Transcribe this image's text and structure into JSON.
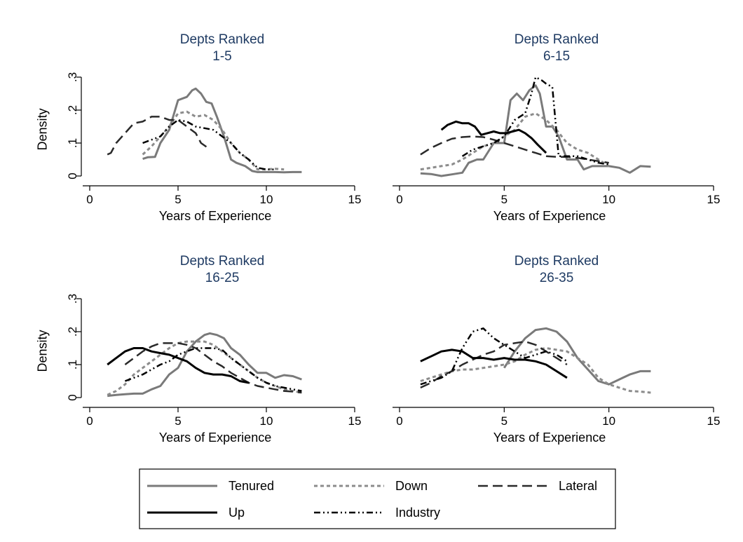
{
  "chart_data": [
    {
      "type": "line",
      "title": "Depts Ranked",
      "subtitle": "1-5",
      "xlabel": "Years of Experience",
      "ylabel": "Density",
      "xlim": [
        0,
        15
      ],
      "ylim": [
        0,
        0.3
      ],
      "xticks": [
        "0",
        "5",
        "10",
        "15"
      ],
      "yticks": [
        "0",
        ".1",
        ".2",
        ".3"
      ],
      "grid": false,
      "series": [
        {
          "name": "Tenured",
          "x": [
            3,
            3.3,
            3.7,
            4,
            4.5,
            5,
            5.5,
            5.8,
            6,
            6.3,
            6.6,
            6.9,
            7.2,
            7.6,
            8,
            8.3,
            8.8,
            9.2,
            9.5,
            10,
            10.5,
            11,
            11.5,
            12
          ],
          "y": [
            0.052,
            0.057,
            0.058,
            0.1,
            0.14,
            0.23,
            0.24,
            0.26,
            0.265,
            0.25,
            0.225,
            0.22,
            0.18,
            0.12,
            0.05,
            0.04,
            0.03,
            0.015,
            0.012,
            0.012,
            0.012,
            0.011,
            0.012,
            0.012
          ]
        },
        {
          "name": "Down",
          "x": [
            3,
            3.5,
            4,
            4.5,
            5,
            5.5,
            6,
            6.5,
            7,
            7.5,
            8,
            8.5,
            9,
            9.5,
            10,
            10.5,
            11
          ],
          "y": [
            0.065,
            0.09,
            0.12,
            0.15,
            0.19,
            0.195,
            0.18,
            0.185,
            0.17,
            0.14,
            0.1,
            0.07,
            0.05,
            0.02,
            0.02,
            0.022,
            0.02
          ]
        },
        {
          "name": "Lateral",
          "x": [
            1,
            1.2,
            1.5,
            2,
            2.5,
            3,
            3.5,
            4,
            4.5,
            5,
            5.5,
            6,
            6.3,
            6.7
          ],
          "y": [
            0.065,
            0.07,
            0.1,
            0.13,
            0.16,
            0.165,
            0.18,
            0.18,
            0.17,
            0.17,
            0.15,
            0.13,
            0.1,
            0.085
          ]
        },
        {
          "name": "Up",
          "x": [],
          "y": []
        },
        {
          "name": "Industry",
          "x": [
            3,
            3.5,
            4,
            4.5,
            5,
            5.5,
            6,
            6.5,
            7,
            7.5,
            8,
            8.5,
            9,
            9.5,
            10,
            10.5
          ],
          "y": [
            0.1,
            0.11,
            0.12,
            0.15,
            0.17,
            0.165,
            0.15,
            0.145,
            0.14,
            0.12,
            0.1,
            0.07,
            0.05,
            0.025,
            0.02,
            0.02
          ]
        }
      ]
    },
    {
      "type": "line",
      "title": "Depts Ranked",
      "subtitle": "6-15",
      "xlabel": "Years of Experience",
      "ylabel": "",
      "xlim": [
        0,
        15
      ],
      "ylim": [
        0,
        0.3
      ],
      "xticks": [
        "0",
        "5",
        "10",
        "15"
      ],
      "yticks": [],
      "grid": false,
      "series": [
        {
          "name": "Tenured",
          "x": [
            1,
            1.5,
            2,
            2.5,
            3,
            3.3,
            3.7,
            4,
            4.5,
            5,
            5.3,
            5.6,
            5.9,
            6.2,
            6.5,
            6.7,
            7,
            7.3,
            7.6,
            8,
            8.5,
            8.8,
            9.2,
            9.5,
            10,
            10.5,
            11,
            11.5,
            12
          ],
          "y": [
            0.008,
            0.006,
            0,
            0.005,
            0.01,
            0.04,
            0.05,
            0.05,
            0.1,
            0.1,
            0.23,
            0.25,
            0.23,
            0.26,
            0.275,
            0.25,
            0.15,
            0.15,
            0.12,
            0.05,
            0.05,
            0.02,
            0.03,
            0.03,
            0.03,
            0.025,
            0.01,
            0.03,
            0.028
          ]
        },
        {
          "name": "Down",
          "x": [
            1,
            1.5,
            2,
            2.5,
            3,
            3.5,
            4,
            4.5,
            5,
            5.5,
            6,
            6.5,
            7,
            7.5,
            8,
            8.5,
            9,
            9.5,
            10
          ],
          "y": [
            0.02,
            0.025,
            0.03,
            0.035,
            0.05,
            0.07,
            0.09,
            0.1,
            0.12,
            0.14,
            0.18,
            0.19,
            0.17,
            0.14,
            0.1,
            0.08,
            0.07,
            0.05,
            0.03
          ]
        },
        {
          "name": "Lateral",
          "x": [
            1,
            1.5,
            2,
            2.5,
            3,
            3.5,
            4,
            4.5,
            5,
            5.5,
            6,
            6.5,
            7,
            7.5,
            8,
            8.5,
            9,
            9.5,
            10
          ],
          "y": [
            0.065,
            0.085,
            0.1,
            0.113,
            0.118,
            0.12,
            0.118,
            0.11,
            0.1,
            0.09,
            0.08,
            0.07,
            0.06,
            0.058,
            0.058,
            0.055,
            0.05,
            0.045,
            0.04
          ]
        },
        {
          "name": "Up",
          "x": [
            2,
            2.3,
            2.7,
            3,
            3.3,
            3.6,
            3.9,
            4.2,
            4.5,
            4.8,
            5.1,
            5.4,
            5.7,
            6,
            6.3,
            6.6,
            7
          ],
          "y": [
            0.14,
            0.155,
            0.165,
            0.16,
            0.16,
            0.15,
            0.125,
            0.13,
            0.135,
            0.13,
            0.13,
            0.135,
            0.14,
            0.13,
            0.115,
            0.095,
            0.07
          ]
        },
        {
          "name": "Industry",
          "x": [
            3,
            3.5,
            4,
            4.5,
            5,
            5.5,
            6,
            6.3,
            6.5,
            6.8,
            7,
            7.3,
            7.6,
            8,
            8.5,
            9,
            9.5,
            10
          ],
          "y": [
            0.06,
            0.08,
            0.09,
            0.1,
            0.12,
            0.17,
            0.19,
            0.25,
            0.3,
            0.29,
            0.28,
            0.27,
            0.06,
            0.06,
            0.06,
            0.05,
            0.04,
            0.035
          ]
        }
      ]
    },
    {
      "type": "line",
      "title": "Depts Ranked",
      "subtitle": "16-25",
      "xlabel": "Years of Experience",
      "ylabel": "Density",
      "xlim": [
        0,
        15
      ],
      "ylim": [
        0,
        0.3
      ],
      "xticks": [
        "0",
        "5",
        "10",
        "15"
      ],
      "yticks": [
        "0",
        ".1",
        ".2",
        ".3"
      ],
      "grid": false,
      "series": [
        {
          "name": "Tenured",
          "x": [
            1,
            1.5,
            2,
            2.5,
            3,
            3.5,
            4,
            4.5,
            5,
            5.5,
            6,
            6.5,
            6.8,
            7.2,
            7.6,
            8,
            8.5,
            9,
            9.5,
            10,
            10.5,
            11,
            11.5,
            12
          ],
          "y": [
            0.005,
            0.008,
            0.01,
            0.012,
            0.012,
            0.025,
            0.035,
            0.07,
            0.09,
            0.14,
            0.17,
            0.19,
            0.195,
            0.19,
            0.18,
            0.15,
            0.13,
            0.1,
            0.075,
            0.075,
            0.06,
            0.068,
            0.065,
            0.055
          ]
        },
        {
          "name": "Down",
          "x": [
            1,
            1.5,
            2,
            2.5,
            3,
            3.5,
            4,
            4.5,
            5,
            5.5,
            6,
            6.5,
            7,
            7.5,
            8,
            8.5,
            9,
            9.5,
            10,
            10.5,
            11,
            11.5,
            12
          ],
          "y": [
            0.008,
            0.02,
            0.04,
            0.07,
            0.09,
            0.11,
            0.13,
            0.15,
            0.165,
            0.17,
            0.17,
            0.17,
            0.16,
            0.14,
            0.12,
            0.1,
            0.08,
            0.06,
            0.045,
            0.035,
            0.025,
            0.02,
            0.015
          ]
        },
        {
          "name": "Lateral",
          "x": [
            2,
            2.5,
            3,
            3.5,
            4,
            4.5,
            5,
            5.5,
            6,
            6.5,
            7,
            7.5,
            8,
            8.5,
            9,
            9.5,
            10,
            10.5,
            11,
            11.5,
            12
          ],
          "y": [
            0.1,
            0.12,
            0.14,
            0.155,
            0.165,
            0.165,
            0.165,
            0.16,
            0.15,
            0.13,
            0.11,
            0.095,
            0.075,
            0.06,
            0.045,
            0.035,
            0.03,
            0.025,
            0.02,
            0.018,
            0.015
          ]
        },
        {
          "name": "Up",
          "x": [
            1,
            1.5,
            2,
            2.5,
            3,
            3.5,
            4,
            4.5,
            5,
            5.5,
            6,
            6.5,
            7,
            7.5,
            8,
            8.5,
            9
          ],
          "y": [
            0.1,
            0.12,
            0.14,
            0.15,
            0.15,
            0.14,
            0.135,
            0.13,
            0.12,
            0.11,
            0.09,
            0.075,
            0.07,
            0.07,
            0.065,
            0.05,
            0.045
          ]
        },
        {
          "name": "Industry",
          "x": [
            2,
            2.5,
            3,
            3.5,
            4,
            4.5,
            5,
            5.5,
            6,
            6.5,
            7,
            7.5,
            8,
            8.5,
            9,
            9.5,
            10,
            10.5,
            11,
            11.5,
            12
          ],
          "y": [
            0.05,
            0.06,
            0.07,
            0.085,
            0.1,
            0.11,
            0.13,
            0.14,
            0.15,
            0.15,
            0.15,
            0.145,
            0.12,
            0.1,
            0.08,
            0.06,
            0.045,
            0.035,
            0.03,
            0.025,
            0.02
          ]
        }
      ]
    },
    {
      "type": "line",
      "title": "Depts Ranked",
      "subtitle": "26-35",
      "xlabel": "Years of Experience",
      "ylabel": "",
      "xlim": [
        0,
        15
      ],
      "ylim": [
        0,
        0.3
      ],
      "xticks": [
        "0",
        "5",
        "10",
        "15"
      ],
      "yticks": [],
      "grid": false,
      "series": [
        {
          "name": "Tenured",
          "x": [
            5,
            5.5,
            6,
            6.5,
            7,
            7.5,
            8,
            8.5,
            9,
            9.5,
            10,
            10.5,
            11,
            11.5,
            12
          ],
          "y": [
            0.09,
            0.14,
            0.18,
            0.205,
            0.21,
            0.2,
            0.17,
            0.12,
            0.085,
            0.05,
            0.04,
            0.055,
            0.07,
            0.08,
            0.08
          ]
        },
        {
          "name": "Down",
          "x": [
            1,
            1.5,
            2,
            2.5,
            3,
            3.5,
            4,
            4.5,
            5,
            5.5,
            6,
            6.5,
            7,
            7.5,
            8,
            8.5,
            9,
            9.5,
            10,
            10.5,
            11,
            11.5,
            12
          ],
          "y": [
            0.05,
            0.06,
            0.07,
            0.08,
            0.085,
            0.085,
            0.09,
            0.095,
            0.1,
            0.11,
            0.13,
            0.145,
            0.15,
            0.145,
            0.14,
            0.12,
            0.1,
            0.06,
            0.04,
            0.03,
            0.02,
            0.018,
            0.015
          ]
        },
        {
          "name": "Lateral",
          "x": [
            1,
            1.5,
            2,
            2.5,
            3,
            3.5,
            4,
            4.5,
            5,
            5.5,
            6,
            6.5,
            7,
            7.5,
            8
          ],
          "y": [
            0.03,
            0.045,
            0.065,
            0.08,
            0.1,
            0.115,
            0.13,
            0.14,
            0.16,
            0.165,
            0.17,
            0.16,
            0.14,
            0.12,
            0.1
          ]
        },
        {
          "name": "Up",
          "x": [
            1,
            1.5,
            2,
            2.5,
            3,
            3.5,
            4,
            4.5,
            5,
            5.5,
            6,
            6.5,
            7,
            7.5,
            8
          ],
          "y": [
            0.11,
            0.125,
            0.14,
            0.145,
            0.14,
            0.12,
            0.12,
            0.115,
            0.12,
            0.115,
            0.115,
            0.11,
            0.1,
            0.08,
            0.06
          ]
        },
        {
          "name": "Industry",
          "x": [
            1,
            1.5,
            2,
            2.5,
            3,
            3.5,
            4,
            4.5,
            5,
            5.5,
            6,
            6.5,
            7,
            7.5,
            8
          ],
          "y": [
            0.04,
            0.05,
            0.06,
            0.08,
            0.15,
            0.2,
            0.21,
            0.18,
            0.16,
            0.14,
            0.12,
            0.13,
            0.14,
            0.13,
            0.11
          ]
        }
      ]
    }
  ],
  "legend": {
    "placement": "bottom",
    "items": [
      {
        "label": "Tenured",
        "series": "Tenured"
      },
      {
        "label": "Down",
        "series": "Down"
      },
      {
        "label": "Lateral",
        "series": "Lateral"
      },
      {
        "label": "Up",
        "series": "Up"
      },
      {
        "label": "Industry",
        "series": "Industry"
      }
    ]
  },
  "series_style": {
    "Tenured": {
      "color": "#7a7a7a",
      "dash": "",
      "width": 3
    },
    "Down": {
      "color": "#8c8c8c",
      "dash": "5 4",
      "width": 3
    },
    "Lateral": {
      "color": "#2a2a2a",
      "dash": "14 7",
      "width": 2.5
    },
    "Up": {
      "color": "#000000",
      "dash": "",
      "width": 3
    },
    "Industry": {
      "color": "#000000",
      "dash": "9 4 2 4 2 4",
      "width": 2.5
    }
  }
}
